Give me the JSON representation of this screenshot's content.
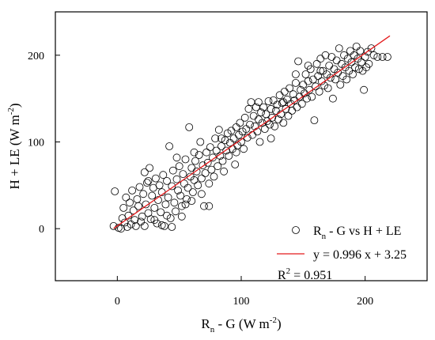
{
  "chart_data": {
    "type": "scatter",
    "xlim": [
      -50,
      250
    ],
    "ylim": [
      -60,
      250
    ],
    "xticks": [
      0,
      100,
      200
    ],
    "yticks": [
      0,
      100,
      200
    ],
    "xlabel": {
      "base": "R",
      "sub": "n",
      "mid": " - G (W m",
      "sup": "-2",
      "end": ")"
    },
    "ylabel": {
      "base": "H + LE (W m",
      "sup": "-2",
      "end": ")"
    },
    "grid": false,
    "legend_position": "bottom-right",
    "series": [
      {
        "name": {
          "base": "R",
          "sub": "n",
          "rest": " - G vs H + LE"
        },
        "marker": "open-circle",
        "color": "#000000",
        "points": [
          [
            -3,
            3
          ],
          [
            -2,
            43
          ],
          [
            1,
            1
          ],
          [
            3,
            0
          ],
          [
            4,
            12
          ],
          [
            5,
            24
          ],
          [
            6,
            7
          ],
          [
            7,
            36
          ],
          [
            8,
            2
          ],
          [
            9,
            15
          ],
          [
            10,
            30
          ],
          [
            11,
            5
          ],
          [
            12,
            44
          ],
          [
            13,
            21
          ],
          [
            14,
            10
          ],
          [
            15,
            3
          ],
          [
            16,
            34
          ],
          [
            17,
            26
          ],
          [
            18,
            48
          ],
          [
            19,
            8
          ],
          [
            20,
            14
          ],
          [
            21,
            40
          ],
          [
            22,
            65
          ],
          [
            22,
            3
          ],
          [
            23,
            28
          ],
          [
            24,
            53
          ],
          [
            25,
            18
          ],
          [
            26,
            70
          ],
          [
            27,
            11
          ],
          [
            28,
            38
          ],
          [
            29,
            47
          ],
          [
            30,
            24
          ],
          [
            31,
            58
          ],
          [
            32,
            6
          ],
          [
            33,
            33
          ],
          [
            34,
            50
          ],
          [
            35,
            19
          ],
          [
            36,
            42
          ],
          [
            37,
            62
          ],
          [
            38,
            3
          ],
          [
            39,
            28
          ],
          [
            40,
            55
          ],
          [
            41,
            36
          ],
          [
            42,
            95
          ],
          [
            43,
            12
          ],
          [
            44,
            49
          ],
          [
            45,
            67
          ],
          [
            46,
            30
          ],
          [
            47,
            20
          ],
          [
            48,
            57
          ],
          [
            49,
            44
          ],
          [
            50,
            72
          ],
          [
            51,
            38
          ],
          [
            52,
            26
          ],
          [
            53,
            63
          ],
          [
            54,
            52
          ],
          [
            55,
            80
          ],
          [
            56,
            34
          ],
          [
            57,
            47
          ],
          [
            58,
            117
          ],
          [
            59,
            60
          ],
          [
            60,
            70
          ],
          [
            61,
            42
          ],
          [
            62,
            56
          ],
          [
            63,
            78
          ],
          [
            64,
            66
          ],
          [
            65,
            50
          ],
          [
            66,
            85
          ],
          [
            67,
            100
          ],
          [
            68,
            58
          ],
          [
            69,
            73
          ],
          [
            70,
            26
          ],
          [
            71,
            64
          ],
          [
            72,
            88
          ],
          [
            73,
            76
          ],
          [
            74,
            52
          ],
          [
            75,
            94
          ],
          [
            76,
            68
          ],
          [
            77,
            82
          ],
          [
            78,
            60
          ],
          [
            79,
            104
          ],
          [
            80,
            90
          ],
          [
            81,
            72
          ],
          [
            82,
            114
          ],
          [
            83,
            84
          ],
          [
            84,
            95
          ],
          [
            85,
            78
          ],
          [
            86,
            66
          ],
          [
            87,
            102
          ],
          [
            88,
            90
          ],
          [
            89,
            110
          ],
          [
            90,
            84
          ],
          [
            91,
            99
          ],
          [
            92,
            113
          ],
          [
            93,
            92
          ],
          [
            94,
            104
          ],
          [
            95,
            74
          ],
          [
            96,
            117
          ],
          [
            97,
            96
          ],
          [
            98,
            108
          ],
          [
            99,
            122
          ],
          [
            100,
            100
          ],
          [
            101,
            112
          ],
          [
            102,
            92
          ],
          [
            103,
            128
          ],
          [
            104,
            115
          ],
          [
            105,
            105
          ],
          [
            106,
            138
          ],
          [
            107,
            120
          ],
          [
            108,
            146
          ],
          [
            109,
            108
          ],
          [
            110,
            130
          ],
          [
            111,
            118
          ],
          [
            112,
            140
          ],
          [
            113,
            112
          ],
          [
            114,
            126
          ],
          [
            115,
            100
          ],
          [
            116,
            134
          ],
          [
            117,
            122
          ],
          [
            118,
            140
          ],
          [
            119,
            115
          ],
          [
            120,
            132
          ],
          [
            121,
            124
          ],
          [
            122,
            147
          ],
          [
            123,
            120
          ],
          [
            124,
            138
          ],
          [
            125,
            128
          ],
          [
            126,
            148
          ],
          [
            127,
            118
          ],
          [
            128,
            136
          ],
          [
            129,
            143
          ],
          [
            130,
            126
          ],
          [
            131,
            154
          ],
          [
            132,
            132
          ],
          [
            133,
            145
          ],
          [
            134,
            122
          ],
          [
            135,
            158
          ],
          [
            136,
            138
          ],
          [
            137,
            149
          ],
          [
            138,
            130
          ],
          [
            139,
            162
          ],
          [
            140,
            144
          ],
          [
            141,
            136
          ],
          [
            142,
            155
          ],
          [
            143,
            148
          ],
          [
            144,
            168
          ],
          [
            145,
            140
          ],
          [
            146,
            193
          ],
          [
            147,
            152
          ],
          [
            148,
            160
          ],
          [
            149,
            144
          ],
          [
            150,
            166
          ],
          [
            151,
            156
          ],
          [
            152,
            178
          ],
          [
            153,
            150
          ],
          [
            154,
            170
          ],
          [
            155,
            160
          ],
          [
            156,
            184
          ],
          [
            157,
            152
          ],
          [
            158,
            172
          ],
          [
            159,
            125
          ],
          [
            160,
            164
          ],
          [
            161,
            190
          ],
          [
            162,
            176
          ],
          [
            163,
            158
          ],
          [
            164,
            196
          ],
          [
            165,
            170
          ],
          [
            166,
            182
          ],
          [
            167,
            165
          ],
          [
            168,
            200
          ],
          [
            169,
            178
          ],
          [
            170,
            162
          ],
          [
            171,
            188
          ],
          [
            172,
            174
          ],
          [
            173,
            198
          ],
          [
            174,
            150
          ],
          [
            175,
            184
          ],
          [
            176,
            172
          ],
          [
            177,
            194
          ],
          [
            178,
            180
          ],
          [
            179,
            208
          ],
          [
            180,
            166
          ],
          [
            181,
            190
          ],
          [
            182,
            176
          ],
          [
            183,
            200
          ],
          [
            184,
            186
          ],
          [
            185,
            172
          ],
          [
            186,
            196
          ],
          [
            187,
            182
          ],
          [
            188,
            205
          ],
          [
            189,
            192
          ],
          [
            190,
            178
          ],
          [
            191,
            200
          ],
          [
            192,
            186
          ],
          [
            193,
            210
          ],
          [
            194,
            196
          ],
          [
            195,
            184
          ],
          [
            196,
            205
          ],
          [
            197,
            192
          ],
          [
            198,
            182
          ],
          [
            199,
            160
          ],
          [
            200,
            198
          ],
          [
            201,
            186
          ],
          [
            202,
            204
          ],
          [
            203,
            190
          ],
          [
            205,
            208
          ],
          [
            207,
            200
          ],
          [
            210,
            198
          ],
          [
            214,
            198
          ],
          [
            218,
            198
          ],
          [
            36,
            4
          ],
          [
            44,
            2
          ],
          [
            52,
            14
          ],
          [
            60,
            32
          ],
          [
            68,
            40
          ],
          [
            74,
            26
          ],
          [
            40,
            15
          ],
          [
            30,
            10
          ],
          [
            25,
            55
          ],
          [
            48,
            82
          ],
          [
            55,
            28
          ],
          [
            62,
            88
          ],
          [
            84,
            104
          ],
          [
            96,
            88
          ],
          [
            114,
            146
          ],
          [
            124,
            104
          ],
          [
            134,
            146
          ],
          [
            144,
            178
          ],
          [
            154,
            188
          ],
          [
            164,
            182
          ]
        ]
      },
      {
        "name": "y = 0.996 x + 3.25",
        "type": "line",
        "color": "#e41a1c",
        "slope": 0.996,
        "intercept": 3.25,
        "x_range": [
          -3,
          220
        ]
      }
    ],
    "annotation": {
      "base": "R",
      "sup": "2",
      "rest": " = 0.951"
    }
  }
}
